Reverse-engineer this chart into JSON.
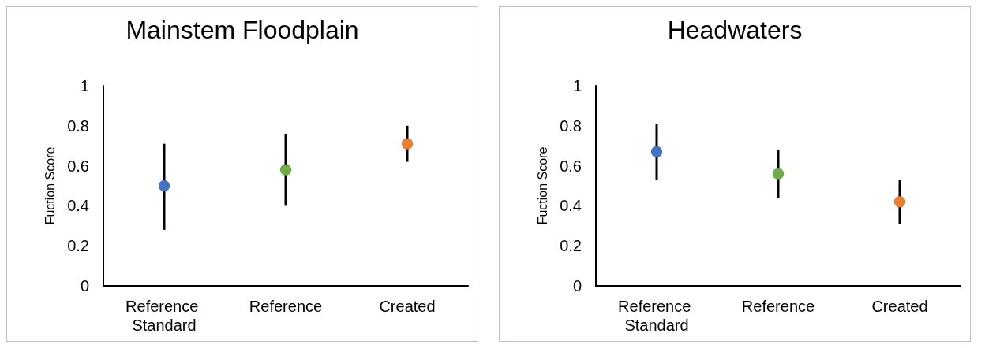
{
  "chart_data": [
    {
      "type": "scatter",
      "title": "Mainstem Floodplain",
      "ylabel": "Fuction Score",
      "categories": [
        "Reference Standard",
        "Reference",
        "Created"
      ],
      "values": [
        0.5,
        0.58,
        0.71
      ],
      "colors": [
        "#4472c4",
        "#70ad47",
        "#ed7d31"
      ],
      "errors": [
        [
          0.28,
          0.71
        ],
        [
          0.4,
          0.76
        ],
        [
          0.62,
          0.8
        ]
      ],
      "ylim": [
        0,
        1
      ],
      "yticks": [
        0,
        0.2,
        0.4,
        0.6,
        0.8,
        1
      ],
      "grid": false,
      "marker": "circle"
    },
    {
      "type": "scatter",
      "title": "Headwaters",
      "ylabel": "Fuction Score",
      "categories": [
        "Reference Standard",
        "Reference",
        "Created"
      ],
      "values": [
        0.67,
        0.56,
        0.42
      ],
      "colors": [
        "#4472c4",
        "#70ad47",
        "#ed7d31"
      ],
      "errors": [
        [
          0.53,
          0.81
        ],
        [
          0.44,
          0.68
        ],
        [
          0.31,
          0.53
        ]
      ],
      "ylim": [
        0,
        1
      ],
      "yticks": [
        0,
        0.2,
        0.4,
        0.6,
        0.8,
        1
      ],
      "grid": false,
      "marker": "circle"
    }
  ]
}
